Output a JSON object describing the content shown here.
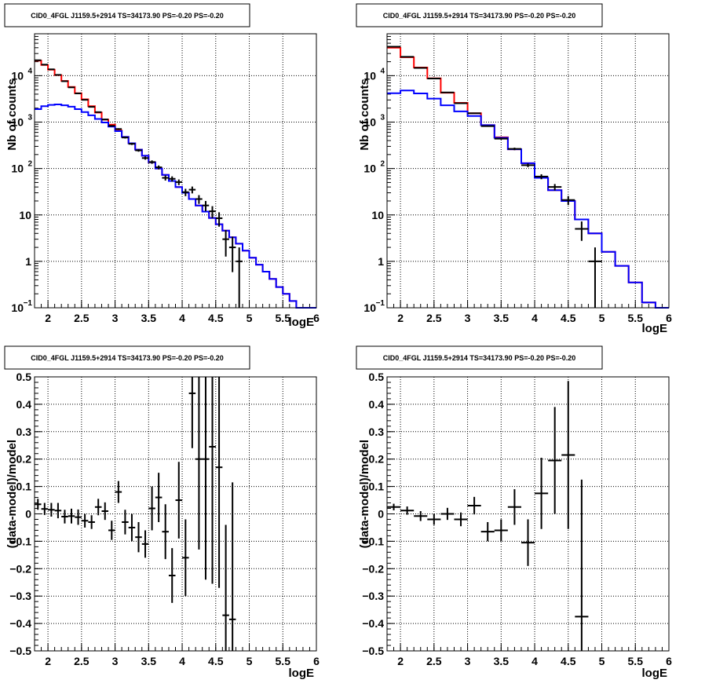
{
  "chart_data": [
    {
      "type": "line",
      "title": "CID0_4FGL J1159.5+2914 TS=34173.90 PS=-0.20 PS=-0.20",
      "xlabel": "logE",
      "ylabel": "Nb of counts",
      "xlim": [
        1.8,
        6.0
      ],
      "ylim": [
        0.1,
        80000
      ],
      "log_y": true,
      "grid": true,
      "x_ticks": [
        "2",
        "2.5",
        "3",
        "3.5",
        "4",
        "4.5",
        "5",
        "5.5",
        "6"
      ],
      "y_ticks": [
        {
          "v": 0.1,
          "label": "10",
          "sup": "−1"
        },
        {
          "v": 1,
          "label": "1",
          "sup": ""
        },
        {
          "v": 10,
          "label": "10",
          "sup": ""
        },
        {
          "v": 100,
          "label": "10",
          "sup": "2"
        },
        {
          "v": 1000,
          "label": "10",
          "sup": "3"
        },
        {
          "v": 10000,
          "label": "10",
          "sup": "4"
        }
      ],
      "bin_edges": [
        1.8,
        1.9,
        2.0,
        2.1,
        2.2,
        2.3,
        2.4,
        2.5,
        2.6,
        2.7,
        2.8,
        2.9,
        3.0,
        3.1,
        3.2,
        3.3,
        3.4,
        3.5,
        3.6,
        3.7,
        3.8,
        3.9,
        4.0,
        4.1,
        4.2,
        4.3,
        4.4,
        4.5,
        4.6,
        4.7,
        4.8,
        4.9,
        5.0,
        5.1,
        5.2,
        5.3,
        5.4,
        5.5,
        5.6,
        5.7,
        5.8,
        5.9,
        6.0
      ],
      "series": [
        {
          "color": "#ff0000",
          "values": [
            21000,
            17000,
            13500,
            10300,
            7700,
            5700,
            4200,
            3100,
            2200,
            1600,
            1130,
            880,
            660,
            480,
            350,
            255,
            188,
            136,
            100,
            73,
            54,
            40,
            30,
            22,
            16,
            11.8,
            8.6,
            6.3,
            4.6,
            3.3,
            2.4,
            1.7,
            1.2,
            0.85,
            0.6,
            0.42,
            0.28,
            0.2,
            0.14,
            0.1,
            0.1,
            0.1
          ]
        },
        {
          "color": "#0000ff",
          "values": [
            1900,
            2200,
            2350,
            2400,
            2300,
            2150,
            1900,
            1650,
            1400,
            1170,
            980,
            800,
            640,
            480,
            350,
            255,
            188,
            136,
            100,
            73,
            54,
            40,
            30,
            22,
            16,
            11.8,
            8.6,
            6.3,
            4.6,
            3.3,
            2.4,
            1.7,
            1.2,
            0.85,
            0.6,
            0.42,
            0.28,
            0.2,
            0.14,
            0.1,
            0.1,
            0.1
          ]
        }
      ],
      "points": [
        {
          "x": 1.85,
          "y": 21500
        },
        {
          "x": 1.95,
          "y": 17300
        },
        {
          "x": 2.05,
          "y": 13700
        },
        {
          "x": 2.15,
          "y": 10400
        },
        {
          "x": 2.25,
          "y": 7600
        },
        {
          "x": 2.35,
          "y": 5600
        },
        {
          "x": 2.45,
          "y": 4150
        },
        {
          "x": 2.55,
          "y": 3020
        },
        {
          "x": 2.65,
          "y": 2130
        },
        {
          "x": 2.75,
          "y": 1640
        },
        {
          "x": 2.85,
          "y": 1140
        },
        {
          "x": 2.95,
          "y": 830
        },
        {
          "x": 3.05,
          "y": 710
        },
        {
          "x": 3.15,
          "y": 465
        },
        {
          "x": 3.25,
          "y": 340
        },
        {
          "x": 3.35,
          "y": 246
        },
        {
          "x": 3.45,
          "y": 168
        },
        {
          "x": 3.55,
          "y": 138
        },
        {
          "x": 3.65,
          "y": 106
        },
        {
          "x": 3.75,
          "y": 63
        },
        {
          "x": 3.85,
          "y": 60
        },
        {
          "x": 3.95,
          "y": 51
        },
        {
          "x": 4.05,
          "y": 31
        },
        {
          "x": 4.15,
          "y": 35
        },
        {
          "x": 4.25,
          "y": 22
        },
        {
          "x": 4.35,
          "y": 16
        },
        {
          "x": 4.45,
          "y": 12
        },
        {
          "x": 4.55,
          "y": 8.5
        },
        {
          "x": 4.65,
          "y": 3
        },
        {
          "x": 4.75,
          "y": 2
        },
        {
          "x": 4.85,
          "y": 1
        }
      ]
    },
    {
      "type": "line",
      "title": "CID0_4FGL J1159.5+2914 TS=34173.90 PS=-0.20 PS=-0.20",
      "xlabel": "logE",
      "ylabel": "Nb of counts",
      "xlim": [
        1.8,
        6.0
      ],
      "ylim": [
        0.1,
        80000
      ],
      "log_y": true,
      "grid": true,
      "x_ticks": [
        "2",
        "2.5",
        "3",
        "3.5",
        "4",
        "4.5",
        "5",
        "5.5",
        "6"
      ],
      "y_ticks": [
        {
          "v": 0.1,
          "label": "10",
          "sup": "−1"
        },
        {
          "v": 1,
          "label": "1",
          "sup": ""
        },
        {
          "v": 10,
          "label": "10",
          "sup": ""
        },
        {
          "v": 100,
          "label": "10",
          "sup": "2"
        },
        {
          "v": 1000,
          "label": "10",
          "sup": "3"
        },
        {
          "v": 10000,
          "label": "10",
          "sup": "4"
        }
      ],
      "bin_edges": [
        1.8,
        2.0,
        2.2,
        2.4,
        2.6,
        2.8,
        3.0,
        3.2,
        3.4,
        3.6,
        3.8,
        4.0,
        4.2,
        4.4,
        4.6,
        4.8,
        5.0,
        5.2,
        5.4,
        5.6,
        5.8,
        6.0
      ],
      "series": [
        {
          "color": "#ff0000",
          "values": [
            40000,
            25000,
            15000,
            8800,
            4300,
            2600,
            1550,
            860,
            470,
            260,
            130,
            63,
            34,
            20,
            8,
            4,
            1.6,
            0.8,
            0.35,
            0.13,
            0.1
          ]
        },
        {
          "color": "#0000ff",
          "values": [
            4200,
            4800,
            4150,
            3200,
            2300,
            1700,
            1350,
            860,
            460,
            260,
            130,
            63,
            34,
            20,
            8,
            4,
            1.6,
            0.8,
            0.35,
            0.13,
            0.1
          ]
        }
      ],
      "points": [
        {
          "x": 1.9,
          "y": 42000
        },
        {
          "x": 2.1,
          "y": 25500
        },
        {
          "x": 2.3,
          "y": 14700
        },
        {
          "x": 2.5,
          "y": 8700
        },
        {
          "x": 2.7,
          "y": 4350
        },
        {
          "x": 2.9,
          "y": 2550
        },
        {
          "x": 3.1,
          "y": 1550
        },
        {
          "x": 3.3,
          "y": 820
        },
        {
          "x": 3.5,
          "y": 440
        },
        {
          "x": 3.7,
          "y": 265
        },
        {
          "x": 3.9,
          "y": 118
        },
        {
          "x": 4.1,
          "y": 67
        },
        {
          "x": 4.3,
          "y": 40
        },
        {
          "x": 4.5,
          "y": 21
        },
        {
          "x": 4.7,
          "y": 5
        },
        {
          "x": 4.9,
          "y": 1
        }
      ]
    },
    {
      "type": "scatter",
      "title": "CID0_4FGL J1159.5+2914 TS=34173.90 PS=-0.20 PS=-0.20",
      "xlabel": "logE",
      "ylabel": "(data-model)/model",
      "xlim": [
        1.8,
        6.0
      ],
      "ylim": [
        -0.5,
        0.5
      ],
      "grid": true,
      "x_ticks": [
        "2",
        "2.5",
        "3",
        "3.5",
        "4",
        "4.5",
        "5",
        "5.5",
        "6"
      ],
      "y_ticks": [
        "−0.5",
        "−0.4",
        "−0.3",
        "−0.2",
        "−0.1",
        "0",
        "0.1",
        "0.2",
        "0.3",
        "0.4",
        "0.5"
      ],
      "xerr": 0.05,
      "points": [
        {
          "x": 1.85,
          "y": 0.035,
          "e": 0.02
        },
        {
          "x": 1.95,
          "y": 0.018,
          "e": 0.022
        },
        {
          "x": 2.05,
          "y": 0.015,
          "e": 0.025
        },
        {
          "x": 2.15,
          "y": 0.012,
          "e": 0.028
        },
        {
          "x": 2.25,
          "y": -0.01,
          "e": 0.025
        },
        {
          "x": 2.35,
          "y": -0.008,
          "e": 0.027
        },
        {
          "x": 2.45,
          "y": -0.012,
          "e": 0.028
        },
        {
          "x": 2.55,
          "y": -0.025,
          "e": 0.025
        },
        {
          "x": 2.65,
          "y": -0.03,
          "e": 0.025
        },
        {
          "x": 2.75,
          "y": 0.025,
          "e": 0.03
        },
        {
          "x": 2.85,
          "y": 0.01,
          "e": 0.032
        },
        {
          "x": 2.95,
          "y": -0.06,
          "e": 0.035
        },
        {
          "x": 3.05,
          "y": 0.08,
          "e": 0.04
        },
        {
          "x": 3.15,
          "y": -0.03,
          "e": 0.045
        },
        {
          "x": 3.25,
          "y": -0.05,
          "e": 0.05
        },
        {
          "x": 3.35,
          "y": -0.085,
          "e": 0.055
        },
        {
          "x": 3.45,
          "y": -0.11,
          "e": 0.05
        },
        {
          "x": 3.55,
          "y": 0.02,
          "e": 0.08
        },
        {
          "x": 3.65,
          "y": 0.06,
          "e": 0.09
        },
        {
          "x": 3.75,
          "y": -0.065,
          "e": 0.1
        },
        {
          "x": 3.85,
          "y": -0.225,
          "e": 0.1
        },
        {
          "x": 3.95,
          "y": 0.05,
          "e": 0.14
        },
        {
          "x": 4.05,
          "y": -0.16,
          "e": 0.14
        },
        {
          "x": 4.15,
          "y": 0.44,
          "e": 0.2
        },
        {
          "x": 4.25,
          "y": 0.2,
          "e": 0.33
        },
        {
          "x": 4.35,
          "y": 0.2,
          "e": 0.44
        },
        {
          "x": 4.45,
          "y": 0.245,
          "e": 0.5
        },
        {
          "x": 4.55,
          "y": 0.17,
          "e": 0.44
        },
        {
          "x": 4.65,
          "y": -0.37,
          "e": 0.33
        },
        {
          "x": 4.75,
          "y": -0.385,
          "e": 0.5
        }
      ]
    },
    {
      "type": "scatter",
      "title": "CID0_4FGL J1159.5+2914 TS=34173.90 PS=-0.20 PS=-0.20",
      "xlabel": "logE",
      "ylabel": "(data-model)/model",
      "xlim": [
        1.8,
        6.0
      ],
      "ylim": [
        -0.5,
        0.5
      ],
      "grid": true,
      "x_ticks": [
        "2",
        "2.5",
        "3",
        "3.5",
        "4",
        "4.5",
        "5",
        "5.5",
        "6"
      ],
      "y_ticks": [
        "−0.5",
        "−0.4",
        "−0.3",
        "−0.2",
        "−0.1",
        "0",
        "0.1",
        "0.2",
        "0.3",
        "0.4",
        "0.5"
      ],
      "xerr": 0.1,
      "points": [
        {
          "x": 1.9,
          "y": 0.025,
          "e": 0.012
        },
        {
          "x": 2.1,
          "y": 0.012,
          "e": 0.015
        },
        {
          "x": 2.3,
          "y": -0.008,
          "e": 0.018
        },
        {
          "x": 2.5,
          "y": -0.02,
          "e": 0.02
        },
        {
          "x": 2.7,
          "y": 0.0,
          "e": 0.022
        },
        {
          "x": 2.9,
          "y": -0.02,
          "e": 0.025
        },
        {
          "x": 3.1,
          "y": 0.03,
          "e": 0.032
        },
        {
          "x": 3.3,
          "y": -0.065,
          "e": 0.035
        },
        {
          "x": 3.5,
          "y": -0.06,
          "e": 0.04
        },
        {
          "x": 3.7,
          "y": 0.025,
          "e": 0.065
        },
        {
          "x": 3.9,
          "y": -0.105,
          "e": 0.085
        },
        {
          "x": 4.1,
          "y": 0.075,
          "e": 0.13
        },
        {
          "x": 4.3,
          "y": 0.195,
          "e": 0.195
        },
        {
          "x": 4.5,
          "y": 0.215,
          "e": 0.27
        },
        {
          "x": 4.7,
          "y": -0.375,
          "e": 0.5
        }
      ]
    }
  ]
}
